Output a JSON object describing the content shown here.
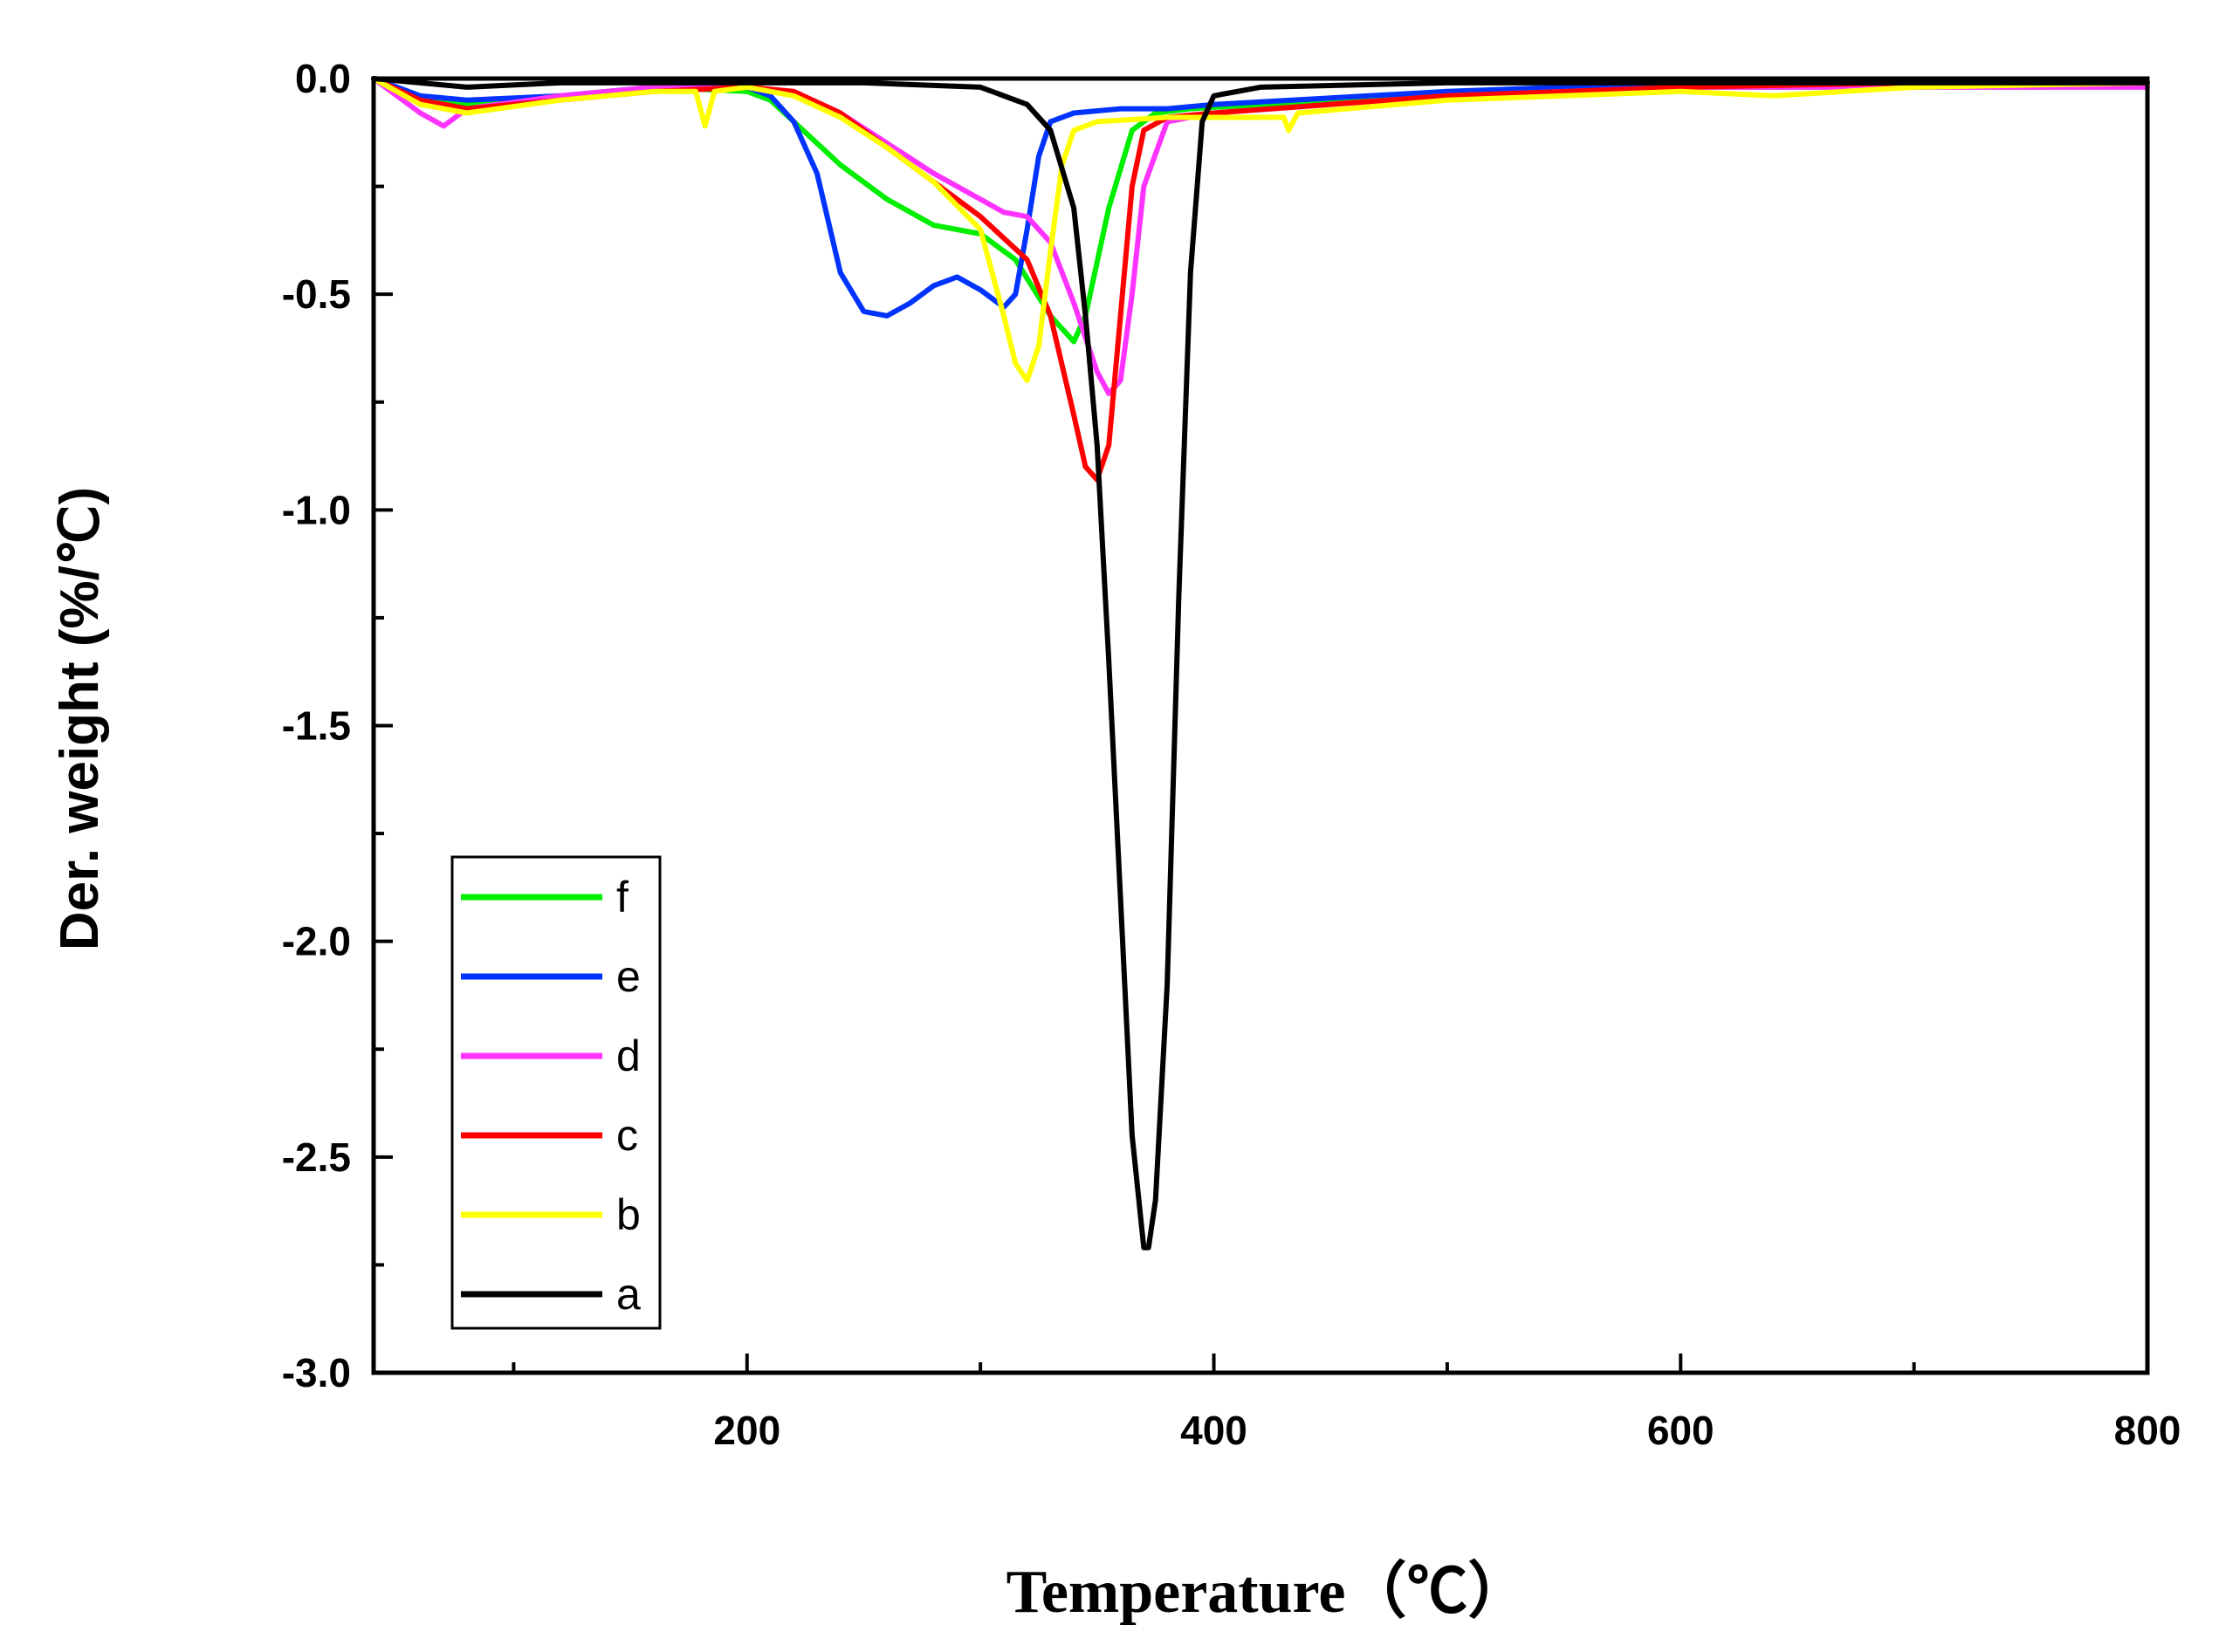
{
  "chart_data": {
    "type": "line",
    "title": "",
    "xlabel": "Temperature（℃）",
    "ylabel": "Der. weight (%/℃)",
    "xlim": [
      40,
      800
    ],
    "ylim": [
      -3.0,
      0.0
    ],
    "x_ticks": [
      200,
      400,
      600,
      800
    ],
    "x_minor_ticks": [
      100,
      300,
      500,
      700
    ],
    "x_tick_labels": [
      "200",
      "400",
      "600",
      "800"
    ],
    "y_ticks": [
      0.0,
      -0.5,
      -1.0,
      -1.5,
      -2.0,
      -2.5,
      -3.0
    ],
    "y_tick_labels": [
      "0.0",
      "-0.5",
      "-1.0",
      "-1.5",
      "-2.0",
      "-2.5",
      "-3.0"
    ],
    "grid": false,
    "legend_position": "bottom-left",
    "series": [
      {
        "name": "f",
        "color": "#00ee00",
        "x": [
          40,
          60,
          80,
          120,
          160,
          200,
          210,
          220,
          240,
          260,
          280,
          300,
          315,
          330,
          340,
          345,
          355,
          365,
          375,
          390,
          420,
          500,
          600,
          700,
          800
        ],
        "y": [
          0.0,
          -0.05,
          -0.06,
          -0.04,
          -0.02,
          -0.03,
          -0.05,
          -0.1,
          -0.2,
          -0.28,
          -0.34,
          -0.36,
          -0.42,
          -0.55,
          -0.61,
          -0.55,
          -0.3,
          -0.12,
          -0.08,
          -0.07,
          -0.06,
          -0.04,
          -0.02,
          -0.02,
          -0.01
        ]
      },
      {
        "name": "e",
        "color": "#0033ff",
        "x": [
          40,
          60,
          80,
          120,
          160,
          200,
          210,
          220,
          230,
          240,
          250,
          260,
          270,
          280,
          290,
          300,
          310,
          315,
          320,
          325,
          330,
          340,
          360,
          380,
          400,
          500,
          600,
          700,
          800
        ],
        "y": [
          0.0,
          -0.04,
          -0.05,
          -0.04,
          -0.02,
          -0.02,
          -0.04,
          -0.1,
          -0.22,
          -0.45,
          -0.54,
          -0.55,
          -0.52,
          -0.48,
          -0.46,
          -0.49,
          -0.53,
          -0.5,
          -0.35,
          -0.18,
          -0.1,
          -0.08,
          -0.07,
          -0.07,
          -0.06,
          -0.03,
          -0.01,
          -0.01,
          -0.01
        ]
      },
      {
        "name": "d",
        "color": "#ff33ff",
        "x": [
          40,
          60,
          70,
          80,
          120,
          160,
          200,
          220,
          240,
          260,
          280,
          300,
          310,
          320,
          330,
          340,
          350,
          355,
          360,
          365,
          370,
          380,
          400,
          500,
          600,
          700,
          800
        ],
        "y": [
          0.0,
          -0.08,
          -0.11,
          -0.07,
          -0.04,
          -0.02,
          -0.02,
          -0.03,
          -0.08,
          -0.15,
          -0.22,
          -0.28,
          -0.31,
          -0.32,
          -0.38,
          -0.52,
          -0.68,
          -0.73,
          -0.7,
          -0.5,
          -0.25,
          -0.1,
          -0.08,
          -0.04,
          -0.02,
          -0.02,
          -0.02
        ]
      },
      {
        "name": "c",
        "color": "#ff0000",
        "x": [
          40,
          60,
          80,
          120,
          160,
          200,
          220,
          240,
          260,
          280,
          300,
          320,
          330,
          340,
          345,
          350,
          355,
          360,
          365,
          370,
          380,
          400,
          500,
          600,
          700,
          800
        ],
        "y": [
          0.0,
          -0.05,
          -0.07,
          -0.05,
          -0.03,
          -0.02,
          -0.03,
          -0.08,
          -0.16,
          -0.24,
          -0.32,
          -0.42,
          -0.55,
          -0.78,
          -0.9,
          -0.93,
          -0.85,
          -0.55,
          -0.25,
          -0.12,
          -0.09,
          -0.08,
          -0.04,
          -0.02,
          -0.01,
          -0.01
        ]
      },
      {
        "name": "b",
        "color": "#ffff00",
        "x": [
          40,
          60,
          80,
          120,
          160,
          178,
          182,
          186,
          200,
          220,
          240,
          260,
          280,
          300,
          310,
          315,
          320,
          325,
          330,
          335,
          340,
          350,
          380,
          430,
          432,
          436,
          500,
          600,
          640,
          700,
          800
        ],
        "y": [
          0.0,
          -0.06,
          -0.08,
          -0.05,
          -0.03,
          -0.03,
          -0.11,
          -0.03,
          -0.02,
          -0.04,
          -0.09,
          -0.16,
          -0.24,
          -0.35,
          -0.55,
          -0.66,
          -0.7,
          -0.62,
          -0.4,
          -0.2,
          -0.12,
          -0.1,
          -0.09,
          -0.09,
          -0.12,
          -0.08,
          -0.05,
          -0.03,
          -0.04,
          -0.02,
          -0.01
        ]
      },
      {
        "name": "a",
        "color": "#000000",
        "x": [
          40,
          80,
          120,
          200,
          250,
          300,
          320,
          330,
          340,
          345,
          350,
          355,
          360,
          365,
          370,
          372,
          375,
          380,
          385,
          390,
          395,
          400,
          420,
          500,
          600,
          700,
          800
        ],
        "y": [
          0.0,
          -0.02,
          -0.01,
          -0.01,
          -0.01,
          -0.02,
          -0.06,
          -0.12,
          -0.3,
          -0.55,
          -0.85,
          -1.35,
          -1.9,
          -2.45,
          -2.71,
          -2.71,
          -2.6,
          -2.1,
          -1.2,
          -0.45,
          -0.1,
          -0.04,
          -0.02,
          -0.01,
          -0.01,
          -0.01,
          -0.01
        ]
      }
    ]
  }
}
